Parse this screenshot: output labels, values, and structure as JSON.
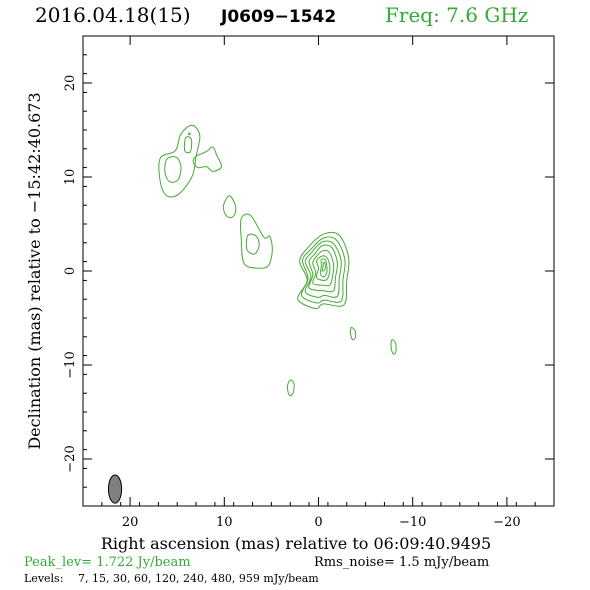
{
  "header": {
    "date": "2016.04.18(15)",
    "source": "J0609−1542",
    "freq": "Freq: 7.6 GHz"
  },
  "footer": {
    "peak": "Peak_lev=  1.722 Jy/beam",
    "rms": "Rms_noise=  1.5 mJy/beam",
    "levels_label": "Levels:",
    "levels": "7,  15,  30,  60, 120, 240, 480, 959 mJy/beam"
  },
  "colors": {
    "contour": "#44aa33",
    "title_green": "#33aa33",
    "beam": "#808080"
  },
  "chart_data": {
    "type": "contour",
    "xlabel": "Right ascension (mas) relative to 06:09:40.9495",
    "ylabel": "Declination (mas) relative to −15:42:40.673",
    "xlim": [
      25,
      -25
    ],
    "ylim": [
      -25,
      25
    ],
    "xticks": [
      20,
      10,
      0,
      -10,
      -20
    ],
    "xtick_labels": [
      "20",
      "10",
      "0",
      "−10",
      "−20"
    ],
    "yticks": [
      20,
      10,
      0,
      -10,
      -20
    ],
    "ytick_labels": [
      "20",
      "10",
      "0",
      "−10",
      "−20"
    ],
    "levels_mJy": [
      7,
      15,
      30,
      60,
      120,
      240,
      480,
      959
    ],
    "peak_Jy_per_beam": 1.722,
    "rms_mJy_per_beam": 1.5,
    "beam": {
      "x": 21.6,
      "y": -23.2,
      "major_mas": 3.0,
      "minor_mas": 1.4,
      "pa_deg": 0
    },
    "components": [
      {
        "name": "core",
        "contours": [
          [
            [
              2.2,
              -3.0
            ],
            [
              1.2,
              -1.0
            ],
            [
              2.0,
              1.0
            ],
            [
              1.2,
              2.4
            ],
            [
              -0.5,
              3.9
            ],
            [
              -2.2,
              3.8
            ],
            [
              -3.2,
              1.4
            ],
            [
              -3.0,
              -1.0
            ],
            [
              -2.7,
              -3.6
            ],
            [
              -0.5,
              -3.5
            ],
            [
              0.3,
              -4.0
            ]
          ],
          [
            [
              1.8,
              -2.6
            ],
            [
              1.1,
              -0.8
            ],
            [
              1.7,
              1.1
            ],
            [
              0.9,
              2.2
            ],
            [
              -0.5,
              3.5
            ],
            [
              -1.9,
              3.3
            ],
            [
              -2.8,
              1.2
            ],
            [
              -2.6,
              -0.9
            ],
            [
              -2.4,
              -3.2
            ],
            [
              -0.6,
              -3.1
            ],
            [
              0.2,
              -3.4
            ]
          ],
          [
            [
              1.4,
              -2.2
            ],
            [
              0.8,
              -0.6
            ],
            [
              1.4,
              1.0
            ],
            [
              0.7,
              2.0
            ],
            [
              -0.4,
              3.1
            ],
            [
              -1.6,
              2.9
            ],
            [
              -2.4,
              1.1
            ],
            [
              -2.2,
              -0.8
            ],
            [
              -2.0,
              -2.7
            ],
            [
              -0.6,
              -2.6
            ],
            [
              0.1,
              -2.8
            ]
          ],
          [
            [
              1.0,
              -1.8
            ],
            [
              0.6,
              -0.4
            ],
            [
              1.0,
              1.0
            ],
            [
              0.4,
              1.8
            ],
            [
              -0.4,
              2.7
            ],
            [
              -1.4,
              2.5
            ],
            [
              -2.0,
              0.9
            ],
            [
              -1.8,
              -0.7
            ],
            [
              -1.6,
              -2.1
            ],
            [
              -0.5,
              -2.1
            ]
          ],
          [
            [
              0.6,
              -1.3
            ],
            [
              0.3,
              -0.2
            ],
            [
              0.6,
              0.9
            ],
            [
              0.0,
              1.8
            ],
            [
              -0.6,
              2.2
            ],
            [
              -1.2,
              1.9
            ],
            [
              -1.6,
              0.7
            ],
            [
              -1.5,
              -0.5
            ],
            [
              -1.2,
              -1.5
            ],
            [
              -0.3,
              -1.5
            ]
          ],
          [
            [
              0.2,
              -0.7
            ],
            [
              0.0,
              0.3
            ],
            [
              0.2,
              1.1
            ],
            [
              -0.4,
              1.6
            ],
            [
              -0.9,
              1.4
            ],
            [
              -1.2,
              0.5
            ],
            [
              -1.1,
              -0.5
            ],
            [
              -0.7,
              -1.0
            ]
          ],
          [
            [
              -0.2,
              -0.3
            ],
            [
              -0.3,
              0.5
            ],
            [
              -0.3,
              1.2
            ],
            [
              -0.7,
              1.2
            ],
            [
              -0.9,
              0.4
            ],
            [
              -0.8,
              -0.4
            ],
            [
              -0.5,
              -0.6
            ]
          ],
          [
            [
              -0.4,
              0.0
            ],
            [
              -0.5,
              0.6
            ],
            [
              -0.5,
              0.9
            ],
            [
              -0.7,
              0.8
            ],
            [
              -0.7,
              0.2
            ]
          ]
        ]
      },
      {
        "name": "knot-6mas",
        "contours": [
          [
            [
              8.2,
              5.6
            ],
            [
              7.2,
              5.9
            ],
            [
              5.8,
              3.6
            ],
            [
              5.2,
              3.7
            ],
            [
              4.9,
              2.3
            ],
            [
              5.3,
              0.6
            ],
            [
              6.4,
              0.3
            ],
            [
              7.9,
              0.8
            ],
            [
              8.2,
              3.4
            ]
          ],
          [
            [
              7.5,
              3.8
            ],
            [
              6.6,
              3.7
            ],
            [
              6.3,
              2.7
            ],
            [
              6.8,
              1.8
            ],
            [
              7.6,
              2.3
            ]
          ]
        ]
      },
      {
        "name": "knot-9mas",
        "contours": [
          [
            [
              9.5,
              8.0
            ],
            [
              8.9,
              7.2
            ],
            [
              8.8,
              6.3
            ],
            [
              9.2,
              5.7
            ],
            [
              9.8,
              5.9
            ],
            [
              10.1,
              6.9
            ]
          ]
        ]
      },
      {
        "name": "knot-11mas",
        "contours": [
          [
            [
              11.9,
              12.7
            ],
            [
              11.2,
              13.2
            ],
            [
              10.8,
              12.3
            ],
            [
              10.3,
              11.1
            ],
            [
              11.2,
              10.6
            ],
            [
              11.9,
              11.1
            ],
            [
              12.8,
              11.0
            ],
            [
              13.3,
              11.6
            ],
            [
              13.0,
              12.2
            ]
          ]
        ]
      },
      {
        "name": "knot-15mas",
        "contours": [
          [
            [
              15.2,
              12.8
            ],
            [
              14.6,
              14.6
            ],
            [
              13.4,
              15.5
            ],
            [
              12.6,
              14.4
            ],
            [
              13.0,
              12.2
            ],
            [
              13.4,
              10.1
            ],
            [
              14.8,
              8.2
            ],
            [
              16.1,
              8.0
            ],
            [
              16.8,
              9.5
            ],
            [
              16.8,
              12.0
            ]
          ],
          [
            [
              16.1,
              11.9
            ],
            [
              15.1,
              12.1
            ],
            [
              14.6,
              11.1
            ],
            [
              14.9,
              9.7
            ],
            [
              15.8,
              9.5
            ],
            [
              16.3,
              10.5
            ]
          ],
          [
            [
              14.1,
              14.2
            ],
            [
              13.5,
              14.0
            ],
            [
              13.6,
              12.7
            ],
            [
              14.2,
              12.8
            ]
          ]
        ]
      },
      {
        "name": "spot-13.5-14.8",
        "contours": [
          [
            [
              13.7,
              14.7
            ],
            [
              13.6,
              14.6
            ],
            [
              13.7,
              14.5
            ],
            [
              13.8,
              14.6
            ]
          ]
        ]
      },
      {
        "name": "spot--3.7--6.6",
        "contours": [
          [
            [
              -3.5,
              -6.0
            ],
            [
              -3.9,
              -6.4
            ],
            [
              -3.9,
              -7.1
            ],
            [
              -3.6,
              -7.3
            ],
            [
              -3.4,
              -6.6
            ]
          ]
        ]
      },
      {
        "name": "spot--8--8",
        "contours": [
          [
            [
              -7.8,
              -7.3
            ],
            [
              -8.2,
              -7.7
            ],
            [
              -8.2,
              -8.6
            ],
            [
              -7.9,
              -8.8
            ],
            [
              -7.7,
              -8.0
            ]
          ]
        ]
      },
      {
        "name": "spot-3--12.3",
        "contours": [
          [
            [
              3.0,
              -11.6
            ],
            [
              2.6,
              -12.0
            ],
            [
              2.7,
              -13.0
            ],
            [
              3.1,
              -13.2
            ],
            [
              3.3,
              -12.3
            ]
          ]
        ]
      }
    ]
  }
}
